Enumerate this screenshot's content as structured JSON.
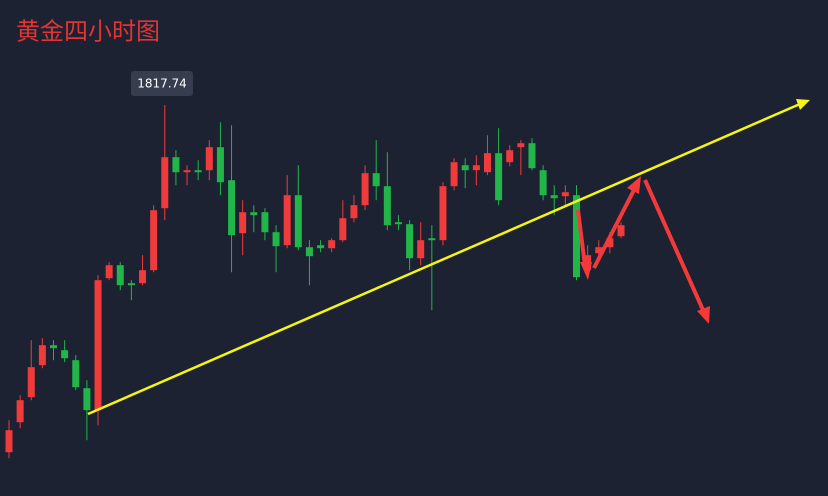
{
  "chart_data": {
    "type": "candlestick",
    "title": "黄金四小时图",
    "up_color": "#ef3b3b",
    "down_color": "#21b54a",
    "ylim": [
      1739.54,
      1838.74
    ],
    "open": [
      1748.3,
      1754.3,
      1759.3,
      1765.7,
      1769.7,
      1768.7,
      1766.7,
      1761.1,
      1756.7,
      1783.1,
      1785.7,
      1782.1,
      1782.1,
      1784.7,
      1797.1,
      1807.3,
      1804.3,
      1804.7,
      1804.7,
      1809.3,
      1802.7,
      1792.1,
      1796.3,
      1796.3,
      1792.3,
      1789.7,
      1799.7,
      1789.3,
      1789.7,
      1789.1,
      1790.7,
      1795.1,
      1797.7,
      1804.1,
      1801.5,
      1794.3,
      1793.9,
      1787.1,
      1791.1,
      1790.7,
      1801.5,
      1805.7,
      1804.7,
      1804.3,
      1808.1,
      1806.3,
      1809.3,
      1810.1,
      1804.7,
      1799.7,
      1799.5,
      1799.7,
      1784.7,
      1788.1,
      1789.3,
      1791.5
    ],
    "high": [
      1754.7,
      1759.7,
      1770.7,
      1771.1,
      1770.7,
      1770.7,
      1767.7,
      1762.7,
      1783.7,
      1786.3,
      1786.3,
      1782.7,
      1787.7,
      1797.7,
      1817.74,
      1808.7,
      1805.7,
      1806.7,
      1810.7,
      1814.3,
      1813.7,
      1798.7,
      1797.7,
      1797.1,
      1793.7,
      1803.7,
      1805.7,
      1790.7,
      1790.7,
      1791.1,
      1798.7,
      1799.7,
      1805.7,
      1810.7,
      1808.3,
      1795.7,
      1794.7,
      1794.3,
      1793.7,
      1802.3,
      1807.1,
      1807.1,
      1807.7,
      1811.7,
      1813.1,
      1809.7,
      1810.7,
      1811.1,
      1805.7,
      1801.7,
      1801.7,
      1801.7,
      1789.7,
      1790.7,
      1792.3,
      1794.3
    ],
    "low": [
      1747.1,
      1753.1,
      1758.7,
      1765.1,
      1766.7,
      1766.3,
      1760.7,
      1750.7,
      1753.7,
      1782.7,
      1780.7,
      1778.7,
      1781.7,
      1784.3,
      1794.7,
      1801.7,
      1801.7,
      1802.7,
      1802.7,
      1799.7,
      1784.3,
      1787.7,
      1792.3,
      1790.7,
      1784.3,
      1789.1,
      1788.7,
      1781.7,
      1788.3,
      1788.3,
      1790.3,
      1794.3,
      1796.7,
      1798.7,
      1792.7,
      1792.7,
      1784.7,
      1785.7,
      1776.7,
      1789.7,
      1800.7,
      1801.1,
      1801.7,
      1803.7,
      1797.7,
      1805.5,
      1803.7,
      1804.7,
      1798.7,
      1795.7,
      1797.7,
      1782.7,
      1783.1,
      1787.5,
      1788.1,
      1791.1
    ],
    "close": [
      1752.7,
      1758.7,
      1765.3,
      1769.7,
      1769.1,
      1767.1,
      1761.3,
      1756.7,
      1782.7,
      1785.7,
      1781.7,
      1781.7,
      1784.7,
      1796.7,
      1807.3,
      1804.3,
      1804.7,
      1804.3,
      1809.3,
      1802.3,
      1791.7,
      1796.3,
      1795.7,
      1792.3,
      1789.5,
      1799.7,
      1789.3,
      1787.5,
      1789.1,
      1790.7,
      1795.1,
      1797.7,
      1804.1,
      1801.5,
      1793.7,
      1793.9,
      1787.1,
      1790.7,
      1790.7,
      1801.5,
      1806.3,
      1804.7,
      1805.7,
      1808.1,
      1798.7,
      1808.7,
      1810.1,
      1805.1,
      1799.7,
      1799.1,
      1800.3,
      1783.3,
      1787.7,
      1789.3,
      1791.1,
      1793.7
    ]
  }
}
